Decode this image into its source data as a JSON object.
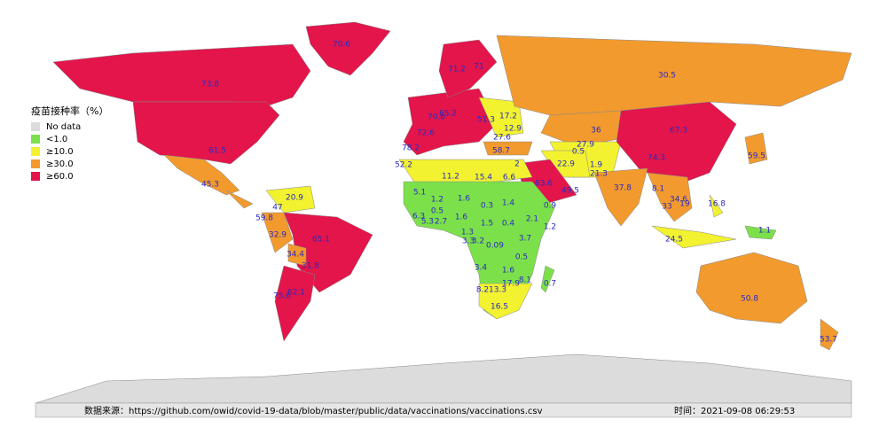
{
  "legend": {
    "title": "疫苗接种率（%）",
    "items": [
      {
        "label": "No data",
        "color": "#dcdcdc"
      },
      {
        "label": "<1.0",
        "color": "#7ce04a"
      },
      {
        "label": "≥10.0",
        "color": "#f2f230"
      },
      {
        "label": "≥30.0",
        "color": "#f29a2e"
      },
      {
        "label": "≥60.0",
        "color": "#e3154b"
      }
    ]
  },
  "labels": [
    70.6,
    73.8,
    61.5,
    45.3,
    30.5,
    71,
    71.2,
    70.6,
    72.6,
    78.2,
    65.2,
    51.3,
    17.2,
    12.9,
    27.6,
    58.7,
    36,
    27.9,
    0.5,
    67.3,
    74.3,
    59.5,
    52.2,
    11.2,
    15.4,
    6.6,
    2,
    22.9,
    1.9,
    21.3,
    63.6,
    49.5,
    37.8,
    8.1,
    34.6,
    33,
    19,
    16.8,
    24.5,
    1.1,
    50.8,
    53.7,
    5.1,
    1.2,
    1.6,
    0.3,
    1.4,
    6.3,
    0.5,
    5.3,
    2.7,
    1.6,
    1.5,
    0.4,
    2.1,
    0.9,
    1.2,
    1.3,
    3.3,
    3.2,
    0.09,
    3.7,
    0.5,
    3.4,
    1.6,
    8.1,
    0.7,
    8.2,
    13.3,
    17.9,
    16.5,
    20.9,
    47,
    59.8,
    32.9,
    65.1,
    34.4,
    31.8,
    75.6,
    62.1
  ],
  "footer": {
    "source": "数据来源：https://github.com/owid/covid-19-data/blob/master/public/data/vaccinations/vaccinations.csv",
    "time": "时间：2021-09-08 06:29:53"
  }
}
